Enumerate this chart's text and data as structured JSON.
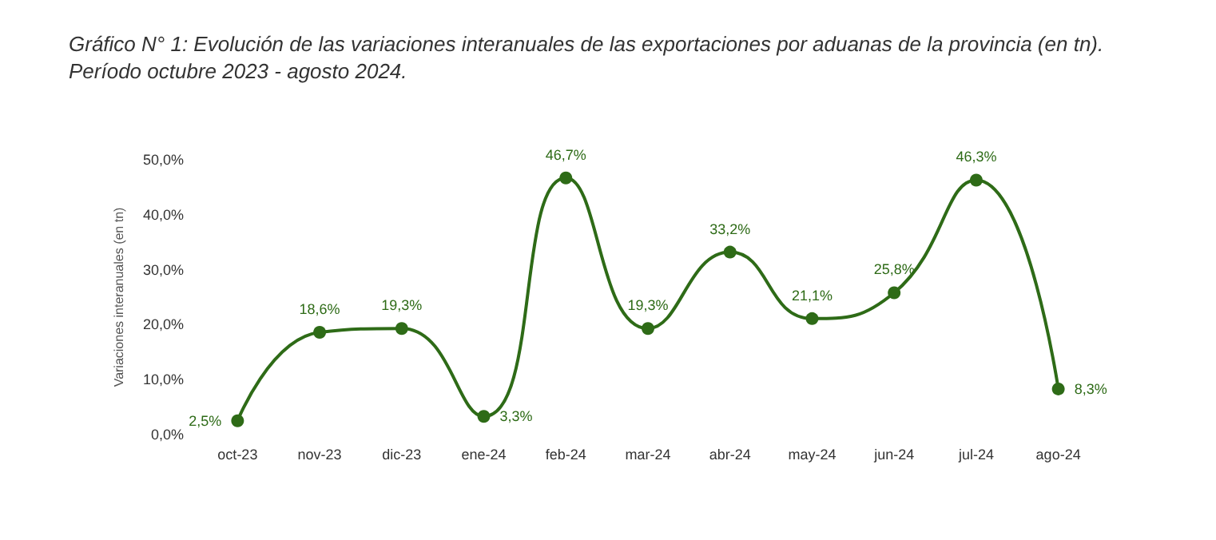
{
  "chart_data": {
    "type": "line",
    "title": "Gráfico N° 1: Evolución de las variaciones interanuales de las exportaciones por aduanas de la provincia (en tn). Período octubre 2023 - agosto 2024.",
    "ylabel": "Variaciones interanuales (en tn)",
    "categories": [
      "oct-23",
      "nov-23",
      "dic-23",
      "ene-24",
      "feb-24",
      "mar-24",
      "abr-24",
      "may-24",
      "jun-24",
      "jul-24",
      "ago-24"
    ],
    "series": [
      {
        "color": "#2e6b17",
        "values": [
          2.5,
          18.6,
          19.3,
          3.3,
          46.7,
          19.3,
          33.2,
          21.1,
          25.8,
          46.3,
          8.3
        ],
        "value_labels": [
          "2,5%",
          "18,6%",
          "19,3%",
          "3,3%",
          "46,7%",
          "19,3%",
          "33,2%",
          "21,1%",
          "25,8%",
          "46,3%",
          "8,3%"
        ]
      }
    ],
    "ylim": [
      0,
      50
    ],
    "yticks": [
      {
        "value": 0,
        "label": "0,0%"
      },
      {
        "value": 10,
        "label": "10,0%"
      },
      {
        "value": 20,
        "label": "20,0%"
      },
      {
        "value": 30,
        "label": "30,0%"
      },
      {
        "value": 40,
        "label": "40,0%"
      },
      {
        "value": 50,
        "label": "50,0%"
      }
    ],
    "grid": false,
    "marker": "circle",
    "line_style": "solid"
  }
}
